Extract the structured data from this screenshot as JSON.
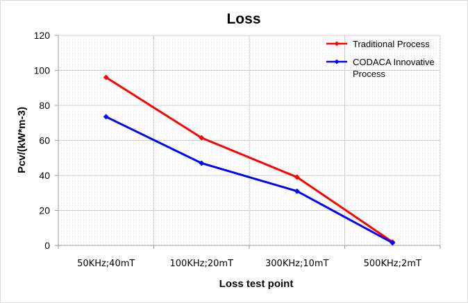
{
  "chart_data": {
    "type": "line",
    "title": "Loss",
    "xlabel": "Loss test point",
    "ylabel": "Pcv/(kW*m-3)",
    "categories": [
      "50KHz;40mT",
      "100KHz;20mT",
      "300KHz;10mT",
      "500KHz;2mT"
    ],
    "ylim": [
      0,
      120
    ],
    "yticks": [
      0,
      20,
      40,
      60,
      80,
      100,
      120
    ],
    "grid": true,
    "legend_position": "top-right",
    "series": [
      {
        "name": "Traditional Process",
        "color": "#ff0000",
        "values": [
          96,
          61.5,
          39,
          2
        ]
      },
      {
        "name": "CODACA Innovative Process",
        "color": "#0000ff",
        "values": [
          73.5,
          47,
          31,
          1.5
        ]
      }
    ]
  }
}
